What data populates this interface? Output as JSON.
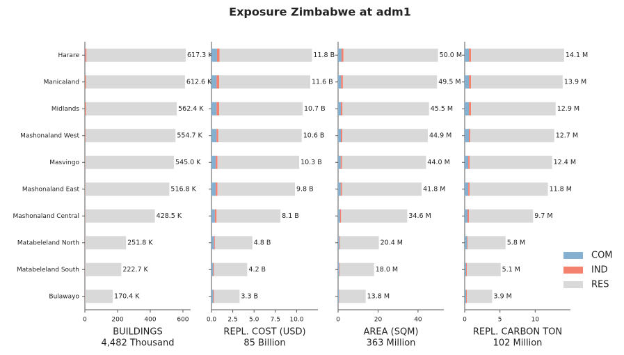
{
  "title": "Exposure Zimbabwe at adm1",
  "legend_position": "lower right",
  "chart_data": [
    {
      "type": "barh",
      "xlabel": [
        "BUILDINGS",
        "4,482 Thousand"
      ],
      "categories": [
        "Harare",
        "Manicaland",
        "Midlands",
        "Mashonaland West",
        "Masvingo",
        "Mashonaland East",
        "Mashonaland Central",
        "Matabeleland North",
        "Matabeleland South",
        "Bulawayo"
      ],
      "series": [
        {
          "name": "COM",
          "color": "#86b0cf",
          "values": [
            2,
            1,
            1,
            1,
            1,
            1,
            1,
            0.5,
            0.5,
            0.5
          ]
        },
        {
          "name": "IND",
          "color": "#f4806e",
          "values": [
            8,
            6,
            6,
            3,
            2,
            2,
            2,
            1,
            1,
            1
          ]
        },
        {
          "name": "RES",
          "color": "#d9d9d9",
          "values": [
            607.3,
            605.6,
            555.4,
            550.7,
            542.0,
            513.8,
            425.5,
            250.3,
            221.2,
            168.9
          ]
        }
      ],
      "totals": [
        617.3,
        612.6,
        562.4,
        554.7,
        545.0,
        516.8,
        428.5,
        251.8,
        222.7,
        170.4
      ],
      "total_labels": [
        "617.3 K",
        "612.6 K",
        "562.4 K",
        "554.7 K",
        "545.0 K",
        "516.8 K",
        "428.5 K",
        "251.8 K",
        "222.7 K",
        "170.4 K"
      ],
      "xlim": [
        0,
        647
      ],
      "xticks": [
        0,
        200,
        400,
        600
      ]
    },
    {
      "type": "barh",
      "xlabel": [
        "REPL. COST (USD)",
        "85 Billion"
      ],
      "series": [
        {
          "name": "COM",
          "color": "#86b0cf",
          "values": [
            0.65,
            0.6,
            0.6,
            0.6,
            0.5,
            0.5,
            0.4,
            0.3,
            0.2,
            0.2
          ]
        },
        {
          "name": "IND",
          "color": "#f4806e",
          "values": [
            0.3,
            0.3,
            0.3,
            0.2,
            0.2,
            0.2,
            0.2,
            0.1,
            0.1,
            0.1
          ]
        },
        {
          "name": "RES",
          "color": "#d9d9d9",
          "values": [
            10.85,
            10.7,
            9.8,
            9.8,
            9.6,
            9.1,
            7.5,
            4.4,
            3.9,
            3.0
          ]
        }
      ],
      "totals": [
        11.8,
        11.6,
        10.7,
        10.6,
        10.3,
        9.8,
        8.1,
        4.8,
        4.2,
        3.3
      ],
      "total_labels": [
        "11.8 B",
        "11.6 B",
        "10.7 B",
        "10.6 B",
        "10.3 B",
        "9.8 B",
        "8.1 B",
        "4.8 B",
        "4.2 B",
        "3.3 B"
      ],
      "xlim": [
        0,
        12.5
      ],
      "xticks": [
        {
          "value": 0,
          "label": "0.0"
        },
        {
          "value": 2.5,
          "label": "2.5"
        },
        {
          "value": 5,
          "label": "5.0"
        },
        {
          "value": 7.5,
          "label": "7.5"
        },
        {
          "value": 10,
          "label": "10.0"
        }
      ]
    },
    {
      "type": "barh",
      "xlabel": [
        "AREA (SQM)",
        "363 Million"
      ],
      "series": [
        {
          "name": "COM",
          "color": "#86b0cf",
          "values": [
            1.7,
            1.5,
            1.4,
            1.4,
            1.3,
            1.3,
            1.0,
            0.6,
            0.5,
            0.4
          ]
        },
        {
          "name": "IND",
          "color": "#f4806e",
          "values": [
            1.0,
            0.9,
            0.8,
            0.7,
            0.6,
            0.6,
            0.5,
            0.3,
            0.3,
            0.2
          ]
        },
        {
          "name": "RES",
          "color": "#d9d9d9",
          "values": [
            47.3,
            47.1,
            43.3,
            42.8,
            42.1,
            39.9,
            33.1,
            19.5,
            17.2,
            13.2
          ]
        }
      ],
      "totals": [
        50.0,
        49.5,
        45.5,
        44.9,
        44.0,
        41.8,
        34.6,
        20.4,
        18.0,
        13.8
      ],
      "total_labels": [
        "50.0 M",
        "49.5 M",
        "45.5 M",
        "44.9 M",
        "44.0 M",
        "41.8 M",
        "34.6 M",
        "20.4 M",
        "18.0 M",
        "13.8 M"
      ],
      "xlim": [
        0,
        52.9
      ],
      "xticks": [
        0,
        20,
        40
      ]
    },
    {
      "type": "barh",
      "xlabel": [
        "REPL. CARBON TON",
        "102 Million"
      ],
      "series": [
        {
          "name": "COM",
          "color": "#86b0cf",
          "values": [
            0.6,
            0.6,
            0.6,
            0.6,
            0.5,
            0.5,
            0.4,
            0.3,
            0.2,
            0.2
          ]
        },
        {
          "name": "IND",
          "color": "#f4806e",
          "values": [
            0.3,
            0.3,
            0.3,
            0.2,
            0.2,
            0.2,
            0.2,
            0.1,
            0.1,
            0.1
          ]
        },
        {
          "name": "RES",
          "color": "#d9d9d9",
          "values": [
            13.2,
            13.0,
            12.0,
            11.9,
            11.7,
            11.1,
            9.1,
            5.4,
            4.8,
            3.6
          ]
        }
      ],
      "totals": [
        14.1,
        13.9,
        12.9,
        12.7,
        12.4,
        11.8,
        9.7,
        5.8,
        5.1,
        3.9
      ],
      "total_labels": [
        "14.1 M",
        "13.9 M",
        "12.9 M",
        "12.7 M",
        "12.4 M",
        "11.8 M",
        "9.7 M",
        "5.8 M",
        "5.1 M",
        "3.9 M"
      ],
      "xlim": [
        0,
        15
      ],
      "xticks": [
        0,
        5,
        10
      ]
    }
  ]
}
